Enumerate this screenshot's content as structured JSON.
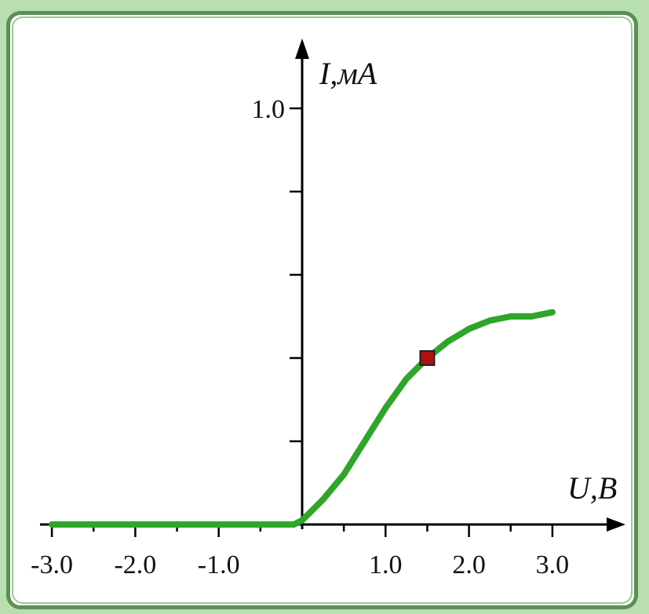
{
  "chart_data": {
    "type": "line",
    "title": "",
    "xlabel": "U,В",
    "ylabel": "I,мА",
    "xlim": [
      -3.0,
      3.0
    ],
    "ylim": [
      0,
      1.0
    ],
    "x_ticks": [
      -3.0,
      -2.0,
      -1.0,
      1.0,
      2.0,
      3.0
    ],
    "x_tick_labels": [
      "-3.0",
      "-2.0",
      "-1.0",
      "1.0",
      "2.0",
      "3.0"
    ],
    "x_minor_ticks": [
      -2.5,
      -1.5,
      -0.5,
      0.5,
      1.5,
      2.5
    ],
    "y_ticks": [
      0.2,
      0.4,
      0.6,
      0.8,
      1.0
    ],
    "y_tick_labels": [
      "",
      "",
      "",
      "",
      "1.0"
    ],
    "grid": false,
    "series": [
      {
        "color": "#2fa52a",
        "x": [
          -3.0,
          -2.5,
          -2.0,
          -1.5,
          -1.0,
          -0.5,
          -0.1,
          0.0,
          0.25,
          0.5,
          0.75,
          1.0,
          1.25,
          1.5,
          1.75,
          2.0,
          2.25,
          2.5,
          2.75,
          3.0
        ],
        "y": [
          0.0,
          0.0,
          0.0,
          0.0,
          0.0,
          0.0,
          0.0,
          0.01,
          0.06,
          0.12,
          0.2,
          0.28,
          0.35,
          0.4,
          0.44,
          0.47,
          0.49,
          0.5,
          0.5,
          0.51
        ]
      }
    ],
    "highlight_point": {
      "x": 1.5,
      "y": 0.4,
      "color": "#b01010"
    }
  }
}
